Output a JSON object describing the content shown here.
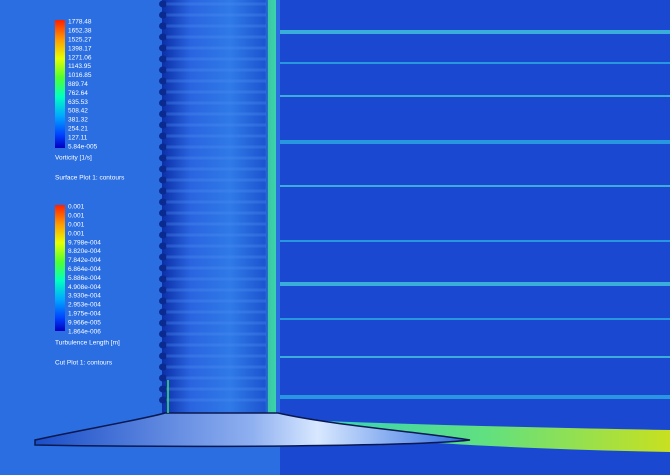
{
  "legends": [
    {
      "labels": [
        "1778.48",
        "1652.38",
        "1525.27",
        "1398.17",
        "1271.06",
        "1143.95",
        "1016.85",
        "889.74",
        "762.64",
        "635.53",
        "508.42",
        "381.32",
        "254.21",
        "127.11",
        "5.84e-005"
      ],
      "quantity": "Vorticity [1/s]",
      "plot": "Surface Plot 1: contours"
    },
    {
      "labels": [
        "0.001",
        "0.001",
        "0.001",
        "0.001",
        "9.798e-004",
        "8.820e-004",
        "7.842e-004",
        "6.864e-004",
        "5.886e-004",
        "4.908e-004",
        "3.930e-004",
        "2.953e-004",
        "1.975e-004",
        "9.966e-005",
        "1.864e-006"
      ],
      "quantity": "Turbulence Length [m]",
      "plot": "Cut Plot 1: contours"
    }
  ]
}
